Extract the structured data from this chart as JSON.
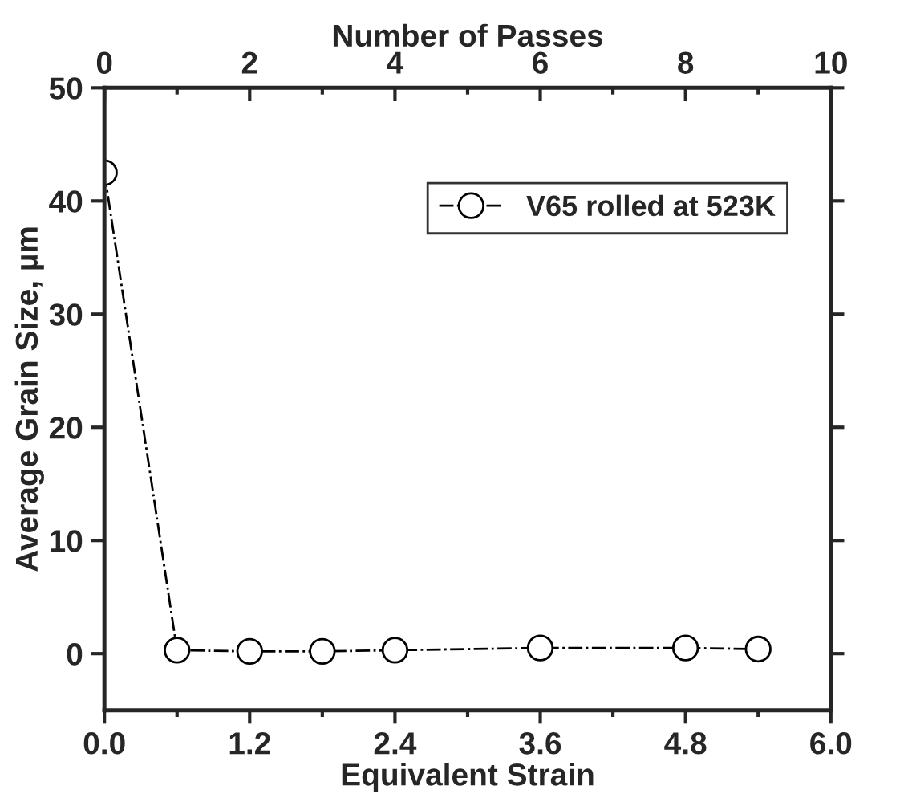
{
  "chart_data": {
    "type": "line",
    "xlabel": "Equivalent Strain",
    "ylabel": "Average Grain Size, µm",
    "x2label": "Number of Passes",
    "x": [
      0.0,
      0.6,
      1.2,
      1.8,
      2.4,
      3.6,
      4.8,
      5.4
    ],
    "series": [
      {
        "name": "V65 rolled at 523K",
        "color": "#000000",
        "values": [
          42.5,
          0.3,
          0.2,
          0.2,
          0.3,
          0.5,
          0.5,
          0.4
        ]
      }
    ],
    "xlim": [
      0,
      6
    ],
    "xticks": [
      {
        "value": 0,
        "label": "0.0"
      },
      {
        "value": 1.2,
        "label": "1.2"
      },
      {
        "value": 2.4,
        "label": "2.4"
      },
      {
        "value": 3.6,
        "label": "3.6"
      },
      {
        "value": 4.8,
        "label": "4.8"
      },
      {
        "value": 6,
        "label": "6.0"
      }
    ],
    "x2lim": [
      0,
      10
    ],
    "x2ticks": [
      0,
      2,
      4,
      6,
      8,
      10
    ],
    "ylim": [
      -5,
      50
    ],
    "yticks": [
      0,
      10,
      20,
      30,
      40,
      50
    ],
    "marker": "circle",
    "line_style": "dashdot",
    "legend": "top right",
    "grid": false
  }
}
